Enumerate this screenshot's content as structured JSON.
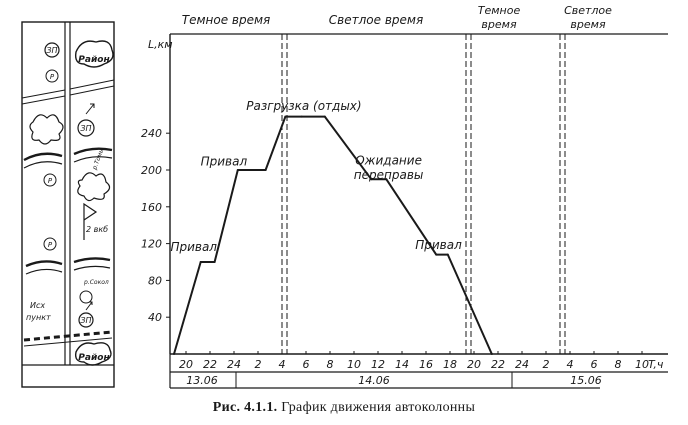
{
  "chart_data": {
    "type": "line",
    "title": "",
    "ylabel": "L,км",
    "xlabel": "T,ч",
    "ylim": [
      0,
      270
    ],
    "yticks": [
      40,
      80,
      120,
      160,
      200,
      240
    ],
    "hours": [
      20,
      22,
      24,
      2,
      4,
      6,
      8,
      10,
      12,
      14,
      16,
      18,
      20,
      22,
      24,
      2,
      4,
      6,
      8,
      10
    ],
    "dates": [
      "13.06",
      "14.06",
      "15.06"
    ],
    "periods": [
      "Темное время",
      "Светлое время",
      "Темное время",
      "Светлое время"
    ],
    "series": [
      {
        "x": [
          0,
          2.3,
          3.5,
          5.5,
          7.9,
          9.6,
          11,
          13,
          17,
          18.3,
          22.6,
          23.6,
          27.4
        ],
        "y": [
          0,
          100,
          100,
          200,
          200,
          258,
          258,
          258,
          190,
          190,
          108,
          108,
          0
        ]
      }
    ],
    "annotations": [
      {
        "text": "Привал",
        "x": 1.7,
        "y": 112
      },
      {
        "text": "Привал",
        "x": 4.3,
        "y": 205
      },
      {
        "text": "Разгрузка (отдых)",
        "x": 11.2,
        "y": 265
      },
      {
        "text": "Ожидание",
        "x": 18.5,
        "y": 206
      },
      {
        "text": "переправы",
        "x": 18.5,
        "y": 190
      },
      {
        "text": "Привал",
        "x": 22.8,
        "y": 114
      }
    ]
  },
  "scheme": {
    "labels": {
      "zone_1": "ЗП",
      "region_top": "Район",
      "p1": "Р",
      "zone_2": "ЗП",
      "p2": "Р",
      "km_2": "2 вкб",
      "p3": "Р",
      "zone_3": "ЗП",
      "road_1": "р.Томь",
      "road_2": "р.Сокол",
      "start_point_1": "Исх",
      "start_point_2": "пункт",
      "region_bottom": "Район"
    }
  },
  "caption": {
    "label": "Рис. 4.1.1.",
    "text": "График движения автоколонны"
  }
}
